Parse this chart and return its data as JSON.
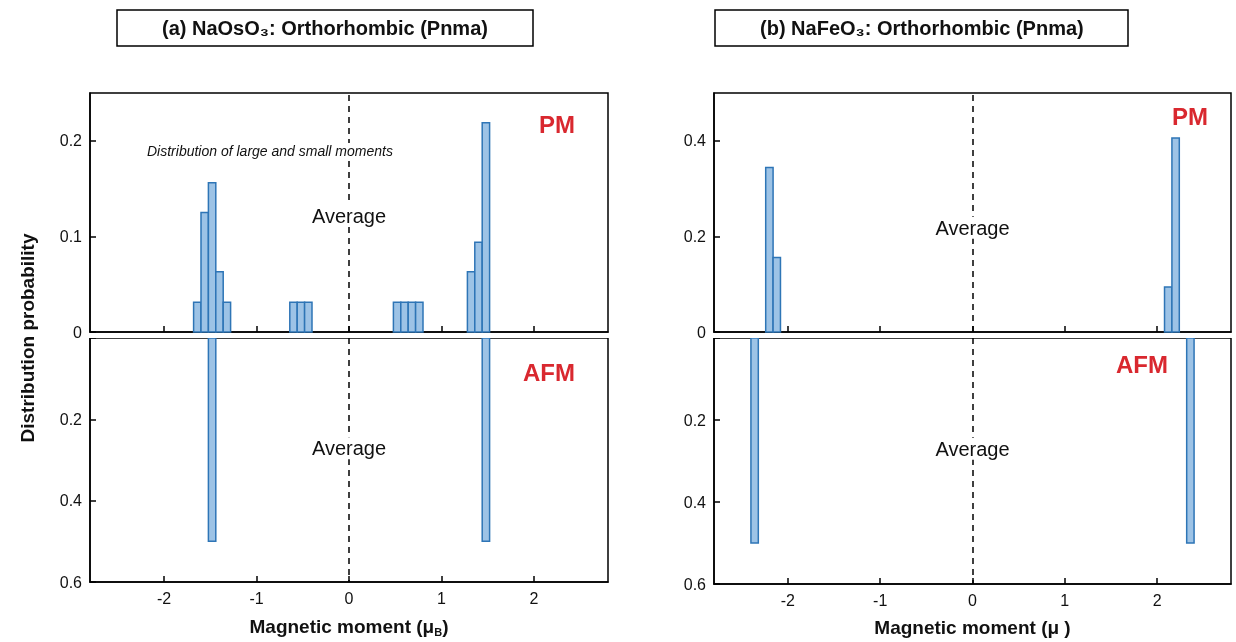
{
  "chart_data": [
    {
      "type": "histogram",
      "title": "(a) NaOsO₃: Orthorhombic (Pnma)",
      "subtitle": "PM",
      "ylabel": "Distribution probability",
      "annotations": [
        "Distribution of large and small moments"
      ],
      "bins": [
        -1.68,
        -1.6,
        -1.52,
        -1.44,
        -1.36,
        -1.28,
        -0.64,
        -0.56,
        -0.48,
        -0.4,
        0.48,
        0.56,
        0.64,
        0.72,
        0.8,
        1.28,
        1.36,
        1.44,
        1.52
      ],
      "values": [
        0.031,
        0.125,
        0.156,
        0.063,
        0.031,
        0,
        0.031,
        0.031,
        0.031,
        0,
        0.031,
        0.031,
        0.031,
        0.031,
        0,
        0.063,
        0.094,
        0.219
      ],
      "color": "#9dc3e6",
      "xlim": [
        -2.8,
        2.8
      ],
      "ylim": [
        0,
        0.25
      ],
      "xticks": [
        -2,
        -1,
        0,
        1,
        2
      ],
      "yticks": [
        0,
        0.1,
        0.2
      ],
      "tick_labels": "y",
      "ref_lines": [
        {
          "axis": "x",
          "value": 0,
          "label": "Average",
          "line_style": "dashed"
        }
      ]
    },
    {
      "type": "histogram",
      "subtitle": "AFM",
      "xlabel": "Magnetic moment (μ$_{B}$)",
      "bins": [
        -1.52,
        -1.44,
        1.44,
        1.52
      ],
      "values": [
        0.5,
        0,
        0.5
      ],
      "color": "#9dc3e6",
      "xlim": [
        -2.8,
        2.8
      ],
      "ylim": [
        0.6,
        0
      ],
      "xticks": [
        -2,
        -1,
        0,
        1,
        2
      ],
      "yticks": [
        {
          "value": 0,
          "label": null
        },
        0.2,
        0.4,
        0.6
      ],
      "ref_lines": [
        {
          "axis": "x",
          "value": 0,
          "label": "Average",
          "line_style": "dashed"
        }
      ]
    },
    {
      "type": "histogram",
      "title": "(b) NaFeO₃: Orthorhombic (Pnma)",
      "subtitle": "PM",
      "bins": [
        -2.24,
        -2.16,
        -2.08,
        2.08,
        2.16,
        2.24
      ],
      "values": [
        0.344,
        0.156,
        0,
        0.094,
        0.406
      ],
      "color": "#9dc3e6",
      "xlim": [
        -2.8,
        2.8
      ],
      "ylim": [
        0,
        0.5
      ],
      "xticks": [
        -2,
        -1,
        0,
        1,
        2
      ],
      "yticks": [
        0,
        0.2,
        0.4
      ],
      "tick_labels": "y",
      "ref_lines": [
        {
          "axis": "x",
          "value": 0,
          "label": "Average",
          "line_style": "dashed"
        }
      ]
    },
    {
      "type": "histogram",
      "subtitle": "AFM",
      "xlabel": "Magnetic moment (μ )",
      "bins": [
        -2.4,
        -2.32,
        2.32,
        2.4
      ],
      "values": [
        0.5,
        0,
        0.5
      ],
      "color": "#9dc3e6",
      "xlim": [
        -2.8,
        2.8
      ],
      "ylim": [
        0.6,
        0
      ],
      "xticks": [
        -2,
        -1,
        0,
        1,
        2
      ],
      "yticks": [
        {
          "value": 0,
          "label": null
        },
        0.2,
        0.4,
        0.6
      ],
      "ref_lines": [
        {
          "axis": "x",
          "value": 0,
          "label": "Average",
          "line_style": "dashed"
        }
      ]
    }
  ]
}
